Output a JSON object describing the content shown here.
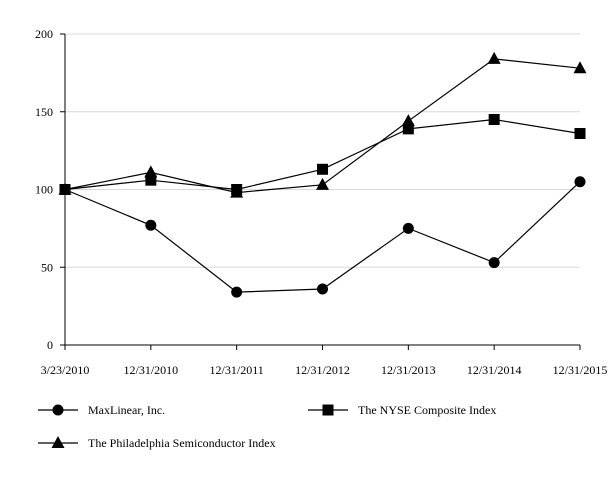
{
  "chart_data": {
    "type": "line",
    "categories": [
      "3/23/2010",
      "12/31/2010",
      "12/31/2011",
      "12/31/2012",
      "12/31/2013",
      "12/31/2014",
      "12/31/2015"
    ],
    "ylim": [
      0,
      200
    ],
    "yticks": [
      0,
      50,
      100,
      150,
      200
    ],
    "grid": "horizontal",
    "legend_position": "bottom",
    "series": [
      {
        "name": "MaxLinear, Inc.",
        "marker": "circle",
        "values": [
          100,
          77,
          34,
          36,
          75,
          53,
          105
        ]
      },
      {
        "name": "The NYSE Composite Index",
        "marker": "square",
        "values": [
          100,
          106,
          100,
          113,
          139,
          145,
          136
        ]
      },
      {
        "name": "The Philadelphia Semiconductor Index",
        "marker": "triangle",
        "values": [
          100,
          111,
          98,
          103,
          144,
          184,
          178
        ]
      }
    ],
    "colors": {
      "line": "#000000",
      "grid": "#d9d9d9"
    }
  }
}
